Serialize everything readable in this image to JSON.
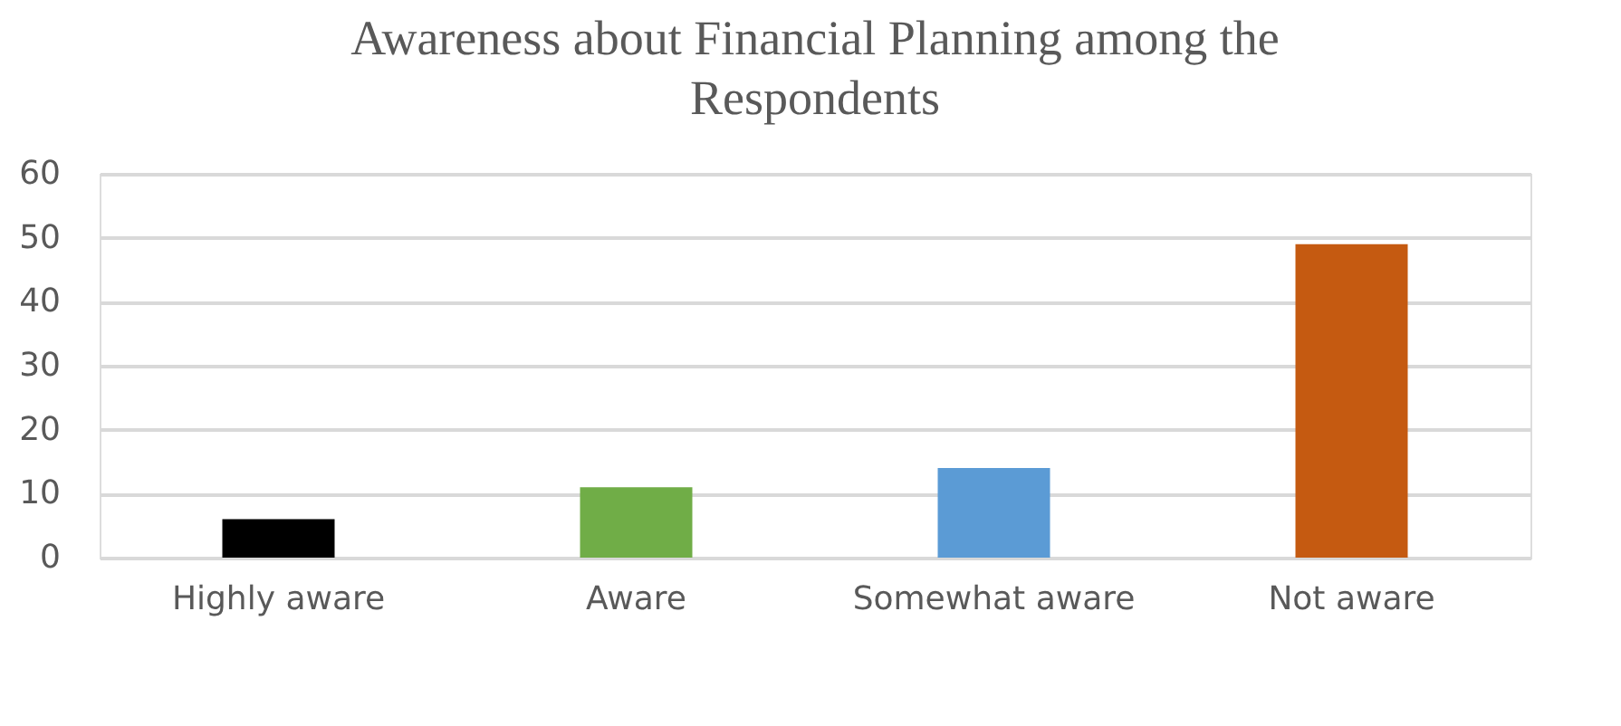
{
  "chart_data": {
    "type": "bar",
    "title": "Awareness about Financial Planning among the Respondents",
    "categories": [
      "Highly aware",
      "Aware",
      "Somewhat aware",
      "Not aware"
    ],
    "values": [
      6,
      11,
      14,
      49
    ],
    "colors": [
      "#000000",
      "#70ad47",
      "#5b9bd5",
      "#c55a11"
    ],
    "ylim": [
      0,
      60
    ],
    "yticks": [
      0,
      10,
      20,
      30,
      40,
      50,
      60
    ],
    "grid": "y"
  }
}
